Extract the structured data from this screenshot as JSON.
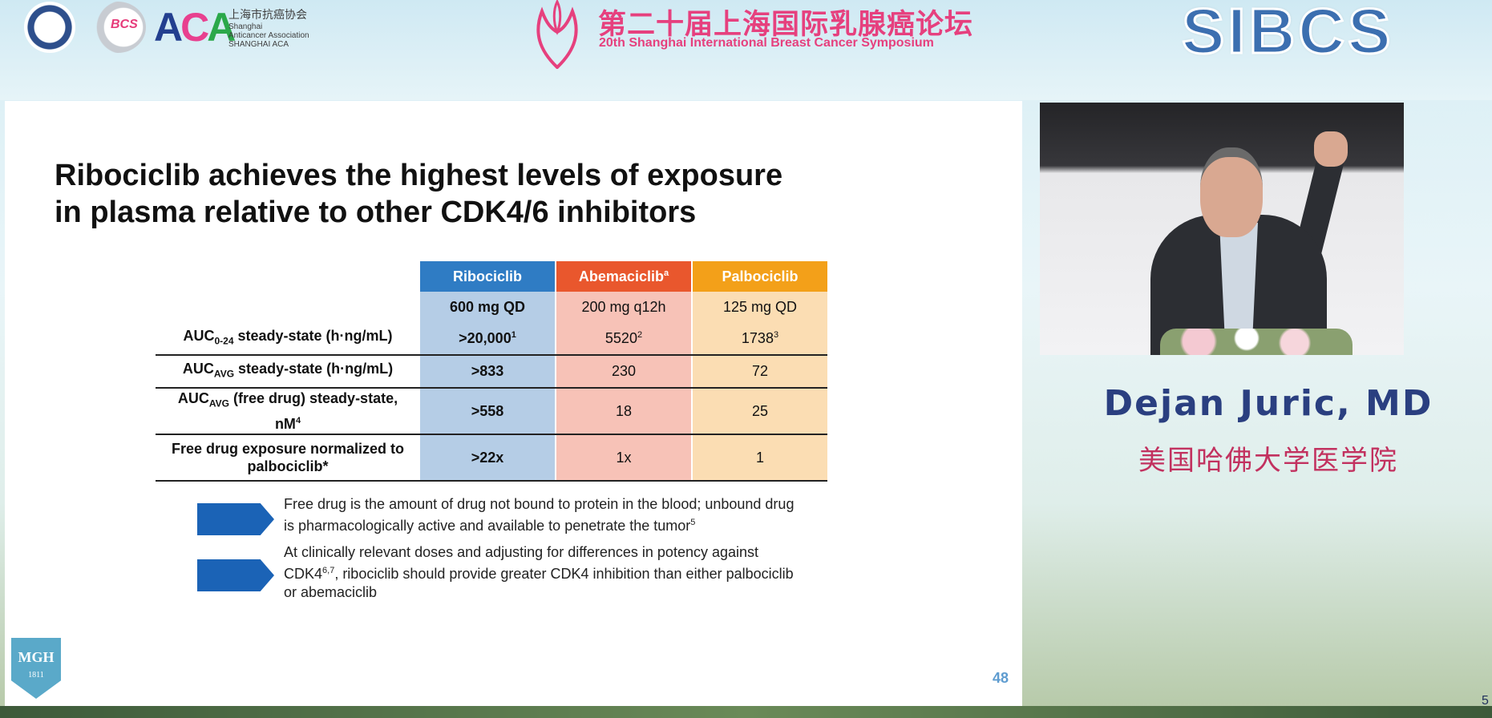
{
  "header": {
    "aca_mark": "ACA",
    "aca_name_cn": "上海市抗癌协会",
    "aca_name_en_1": "Shanghai",
    "aca_name_en_2": "Anticancer Association",
    "aca_name_en_3": "SHANGHAI ACA",
    "bcs_logo": "BCS",
    "symposium_title_cn": "第二十届上海国际乳腺癌论坛",
    "symposium_title_en": "20th Shanghai International Breast Cancer Symposium",
    "brand_logo": "SIBCS",
    "colors": {
      "brand_pink": "#e6407e",
      "brand_blue": "#3c6fb0"
    }
  },
  "slide": {
    "title_line_1": "Ribociclib achieves the highest levels of exposure",
    "title_line_2": "in plasma relative to other CDK4/6 inhibitors",
    "table": {
      "headers": {
        "ribociclib": "Ribociclib",
        "abemaciclib": "Abemaciclib",
        "abemaciclib_sup": "a",
        "palbociclib": "Palbociclib"
      },
      "doses": {
        "ribociclib": "600 mg QD",
        "abemaciclib": "200 mg q12h",
        "palbociclib": "125 mg QD"
      },
      "rows": [
        {
          "label_main": "AUC",
          "label_sub": "0-24",
          "label_rest": " steady-state (h·ng/mL)",
          "ribociclib": ">20,000",
          "ribociclib_sup": "1",
          "abemaciclib": "5520",
          "abemaciclib_sup": "2",
          "palbociclib": "1738",
          "palbociclib_sup": "3"
        },
        {
          "label_main": "AUC",
          "label_sub": "AVG",
          "label_rest": " steady-state (h·ng/mL)",
          "ribociclib": ">833",
          "abemaciclib": "230",
          "palbociclib": "72"
        },
        {
          "label_main": "AUC",
          "label_sub": "AVG",
          "label_rest": " (free drug) steady-state,",
          "label_line2": "nM",
          "label_line2_sup": "4",
          "ribociclib": ">558",
          "abemaciclib": "18",
          "palbociclib": "25"
        },
        {
          "label_line1": "Free drug exposure normalized to",
          "label_line2": "palbociclib*",
          "ribociclib": ">22x",
          "abemaciclib": "1x",
          "palbociclib": "1"
        }
      ],
      "colors": {
        "ribociclib_header": "#2f7cc4",
        "abemaciclib_header": "#e9572d",
        "palbociclib_header": "#f3a019"
      }
    },
    "bullets": [
      {
        "line1": "Free drug is the amount of drug not bound to protein in the blood; unbound drug",
        "line2": "is pharmacologically active and available to penetrate the tumor",
        "line2_sup": "5"
      },
      {
        "line1": "At clinically relevant doses and adjusting for differences in potency against",
        "line2_a": "CDK4",
        "line2_sup": "6,7",
        "line2_b": ", ribociclib should provide greater CDK4 inhibition than either palbociclib",
        "line3": "or abemaciclib"
      }
    ],
    "institution_logo_name": "MGH",
    "institution_logo_year": "1811",
    "page_number": "48"
  },
  "speaker": {
    "name": "Dejan Juric, MD",
    "institution": "美国哈佛大学医学院",
    "colors": {
      "name": "#2a3f80",
      "institution": "#c2315f"
    }
  },
  "corner_mark": "5"
}
